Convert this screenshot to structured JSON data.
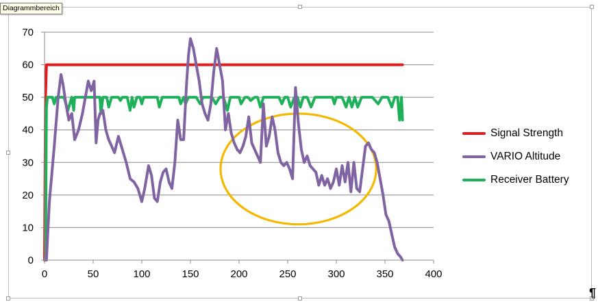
{
  "tooltip": {
    "text": "Diagrammbereich"
  },
  "pilcrow": "¶",
  "colors": {
    "signal": "#e41a1c",
    "vario": "#8064a2",
    "battery": "#1fb05a",
    "ellipse": "#f5b800",
    "grid": "#888888",
    "axis": "#888888"
  },
  "chart_data": {
    "type": "line",
    "title": "",
    "xlabel": "",
    "ylabel": "",
    "xlim": [
      0,
      400
    ],
    "ylim": [
      0,
      70
    ],
    "x_ticks": [
      0,
      50,
      100,
      150,
      200,
      250,
      300,
      350,
      400
    ],
    "y_ticks": [
      0,
      10,
      20,
      30,
      40,
      50,
      60,
      70
    ],
    "grid": "horizontal",
    "legend_position": "right",
    "series": [
      {
        "name": "Signal Strength",
        "color": "#e41a1c",
        "x": [
          0,
          1,
          2,
          3,
          368
        ],
        "y": [
          0,
          50,
          60,
          60,
          60
        ]
      },
      {
        "name": "VARIO Altitude",
        "color": "#8064a2",
        "x": [
          0,
          2,
          5,
          10,
          14,
          17,
          19,
          22,
          25,
          28,
          31,
          35,
          39,
          42,
          45,
          48,
          51,
          53,
          55,
          57,
          60,
          63,
          66,
          69,
          72,
          76,
          80,
          84,
          88,
          92,
          96,
          100,
          103,
          107,
          110,
          113,
          116,
          119,
          122,
          125,
          128,
          131,
          134,
          137,
          140,
          143,
          146,
          148,
          150,
          153,
          156,
          159,
          162,
          165,
          168,
          171,
          174,
          177,
          180,
          183,
          186,
          189,
          192,
          195,
          198,
          201,
          204,
          207,
          210,
          213,
          216,
          219,
          222,
          225,
          228,
          231,
          234,
          237,
          240,
          243,
          246,
          249,
          252,
          255,
          258,
          261,
          264,
          267,
          270,
          273,
          276,
          279,
          282,
          285,
          288,
          291,
          294,
          297,
          300,
          303,
          306,
          309,
          312,
          315,
          318,
          321,
          324,
          327,
          330,
          333,
          336,
          339,
          342,
          345,
          348,
          351,
          354,
          357,
          360,
          363,
          366,
          368
        ],
        "y": [
          0,
          0,
          18,
          35,
          50,
          57,
          54,
          48,
          43,
          45,
          37,
          40,
          45,
          50,
          55,
          52,
          55,
          36,
          43,
          45,
          46,
          40,
          37,
          35,
          33,
          38,
          34,
          30,
          25,
          24,
          22,
          18,
          22,
          29,
          26,
          19,
          18,
          24,
          27,
          28,
          24,
          22,
          30,
          43,
          37,
          37,
          54,
          63,
          68,
          65,
          60,
          55,
          48,
          45,
          43,
          48,
          58,
          65,
          60,
          55,
          40,
          45,
          39,
          36,
          34,
          33,
          35,
          38,
          44,
          36,
          34,
          32,
          30,
          48,
          35,
          38,
          44,
          40,
          33,
          30,
          29,
          30,
          28,
          25,
          53,
          42,
          34,
          30,
          32,
          29,
          28,
          27,
          23,
          26,
          23,
          25,
          22,
          24,
          28,
          23,
          29,
          24,
          30,
          21,
          30,
          22,
          21,
          28,
          35,
          36,
          34,
          33,
          30,
          25,
          20,
          14,
          12,
          8,
          4,
          2,
          1,
          0
        ]
      },
      {
        "name": "Receiver Battery",
        "color": "#1fb05a",
        "x": [
          0,
          1,
          2,
          3,
          8,
          10,
          12,
          14,
          20,
          22,
          24,
          28,
          30,
          31,
          33,
          45,
          50,
          55,
          57,
          58,
          60,
          64,
          66,
          69,
          72,
          76,
          78,
          80,
          85,
          88,
          90,
          92,
          95,
          98,
          100,
          102,
          104,
          110,
          116,
          118,
          121,
          127,
          134,
          138,
          140,
          143,
          145,
          148,
          150,
          156,
          160,
          163,
          165,
          172,
          176,
          180,
          184,
          188,
          191,
          193,
          200,
          202,
          206,
          209,
          212,
          216,
          219,
          222,
          225,
          229,
          235,
          241,
          244,
          247,
          250,
          253,
          257,
          260,
          263,
          266,
          270,
          274,
          278,
          284,
          290,
          296,
          298,
          300,
          306,
          310,
          313,
          316,
          319,
          322,
          326,
          330,
          337,
          343,
          347,
          353,
          357,
          360,
          363,
          365,
          367,
          368
        ],
        "y": [
          0,
          0,
          47,
          50,
          50,
          48,
          50,
          50,
          50,
          48,
          46,
          50,
          46,
          50,
          50,
          50,
          50,
          50,
          50,
          45,
          50,
          50,
          47,
          50,
          50,
          50,
          49,
          50,
          50,
          46,
          50,
          47,
          50,
          50,
          48,
          50,
          50,
          50,
          50,
          47,
          50,
          50,
          50,
          50,
          48,
          50,
          48,
          50,
          50,
          50,
          48,
          50,
          50,
          50,
          48,
          50,
          50,
          46,
          50,
          50,
          50,
          48,
          50,
          50,
          49,
          50,
          50,
          47,
          50,
          50,
          50,
          50,
          48,
          50,
          50,
          47,
          50,
          50,
          47,
          50,
          50,
          47,
          50,
          50,
          50,
          50,
          48,
          50,
          50,
          47,
          50,
          47,
          50,
          47,
          50,
          50,
          50,
          48,
          50,
          50,
          47,
          50,
          50,
          43,
          50,
          43
        ]
      }
    ],
    "annotations": [
      {
        "type": "ellipse",
        "color": "#f5b800",
        "cx": 261,
        "cy": 28,
        "rx": 80,
        "ry": 17
      }
    ]
  }
}
